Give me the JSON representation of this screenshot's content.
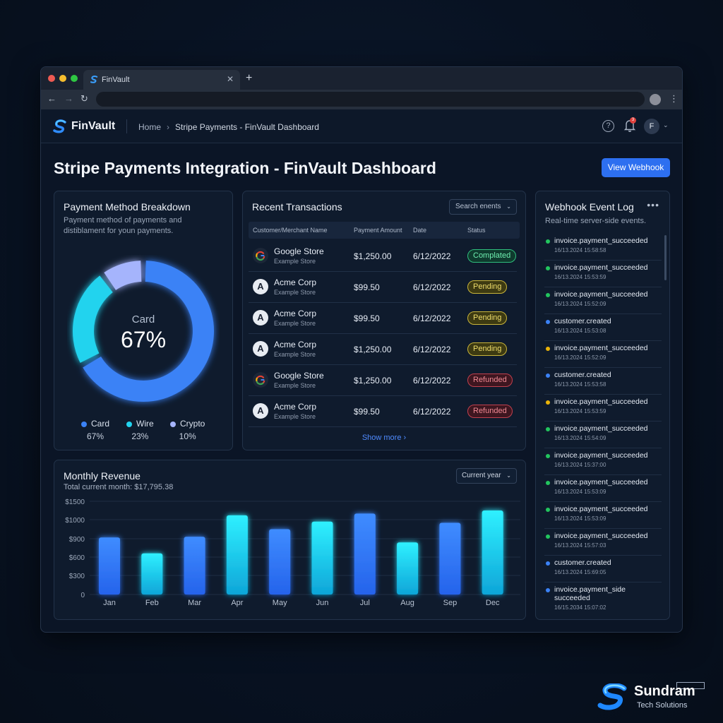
{
  "browser": {
    "tab_title": "FinVault",
    "new_tab_icon": "plus-icon",
    "close_icon": "close-icon"
  },
  "header": {
    "logo_text": "FinVault",
    "breadcrumb": {
      "home": "Home",
      "current": "Stripe Payments - FinVault Dashboard"
    },
    "notification_count": "3",
    "avatar_initial": "F"
  },
  "page": {
    "title": "Stripe Payments Integration - FinVault Dashboard",
    "webhook_button": "View Webhook"
  },
  "payment_breakdown": {
    "title": "Payment Method Breakdown",
    "subtitle_line1": "Payment method of payments and",
    "subtitle_line2": "distiblament for youn payments.",
    "center_label": "Card",
    "center_value": "67%",
    "legend": [
      {
        "label": "Card",
        "value": "67%",
        "color": "#3b82f6"
      },
      {
        "label": "Wire",
        "value": "23%",
        "color": "#22d3ee"
      },
      {
        "label": "Crypto",
        "value": "10%",
        "color": "#a5b4fc"
      }
    ]
  },
  "transactions": {
    "title": "Recent Transactions",
    "search_placeholder": "Search enents",
    "columns": [
      "Customer/Merchant Name",
      "Payment Amount",
      "Date",
      "Status"
    ],
    "rows": [
      {
        "icon": "google-icon",
        "name": "Google Store",
        "sub": "Example Store",
        "amount": "$1,250.00",
        "date": "6/12/2022",
        "status": "Complated",
        "status_type": "completed"
      },
      {
        "icon": "A",
        "name": "Acme Corp",
        "sub": "Example Store",
        "amount": "$99.50",
        "date": "6/12/2022",
        "status": "Pending",
        "status_type": "pending"
      },
      {
        "icon": "A",
        "name": "Acme Corp",
        "sub": "Example Store",
        "amount": "$99.50",
        "date": "6/12/2022",
        "status": "Pending",
        "status_type": "pending"
      },
      {
        "icon": "A",
        "name": "Acme Corp",
        "sub": "Example Store",
        "amount": "$1,250.00",
        "date": "6/12/2022",
        "status": "Pending",
        "status_type": "pending"
      },
      {
        "icon": "google-icon",
        "name": "Google Store",
        "sub": "Example Store",
        "amount": "$1,250.00",
        "date": "6/12/2022",
        "status": "Refunded",
        "status_type": "refunded"
      },
      {
        "icon": "A",
        "name": "Acme Corp",
        "sub": "Example Store",
        "amount": "$99.50",
        "date": "6/12/2022",
        "status": "Refunded",
        "status_type": "refunded"
      }
    ],
    "show_more": "Show more"
  },
  "revenue": {
    "title": "Monthly Revenue",
    "subtitle": "Total current month: $17,795.38",
    "period_select": "Current year"
  },
  "chart_data": {
    "type": "bar",
    "categories": [
      "Jan",
      "Feb",
      "Mar",
      "Apr",
      "May",
      "Jun",
      "Jul",
      "Aug",
      "Sep",
      "Dec"
    ],
    "values": [
      920,
      660,
      930,
      1270,
      1050,
      1170,
      1300,
      840,
      1150,
      1350
    ],
    "y_tick_labels": [
      "0",
      "$300",
      "$600",
      "$900",
      "$1000",
      "$1500"
    ],
    "grid": true
  },
  "webhook_log": {
    "title": "Webhook Event Log",
    "subtitle": "Real-time server-side events.",
    "events": [
      {
        "event": "invoice.payment_succeeded",
        "time": "16/13.2024 15:58:58",
        "color": "#22c55e"
      },
      {
        "event": "invoice.payment_succeeded",
        "time": "16/13.2024 15:53:59",
        "color": "#22c55e"
      },
      {
        "event": "invoice.payment_succeeded",
        "time": "16/13.2024 15:52:09",
        "color": "#22c55e"
      },
      {
        "event": "customer.created",
        "time": "16/13.2024 15:53:08",
        "color": "#3b82f6"
      },
      {
        "event": "invoice.payment_succeeded",
        "time": "16/13.2024 15:52:09",
        "color": "#eab308"
      },
      {
        "event": "customer.created",
        "time": "16/13.2024 15:53:58",
        "color": "#3b82f6"
      },
      {
        "event": "invoice.payment_succeeded",
        "time": "16/13.2024 15:53:59",
        "color": "#eab308"
      },
      {
        "event": "invoice.payment_succeeded",
        "time": "16/13.2024 15:54:09",
        "color": "#22c55e"
      },
      {
        "event": "invoice.payment_succeeded",
        "time": "16/13.2024 15:37:00",
        "color": "#22c55e"
      },
      {
        "event": "invoice.payment_succeeded",
        "time": "16/13.2024 15:53:09",
        "color": "#22c55e"
      },
      {
        "event": "invoice.payment_succeeded",
        "time": "16/13.2024 15:53:09",
        "color": "#22c55e"
      },
      {
        "event": "invoice.payment_succeeded",
        "time": "16/13.2024 15:57:03",
        "color": "#22c55e"
      },
      {
        "event": "customer.created",
        "time": "16/13.2024 15:69:05",
        "color": "#3b82f6"
      },
      {
        "event": "invoice.payment_side succeeded",
        "time": "16/15.2034 15:07:02",
        "color": "#3b82f6"
      }
    ]
  },
  "branding": {
    "name": "Sundram",
    "tagline": "Tech Solutions"
  }
}
